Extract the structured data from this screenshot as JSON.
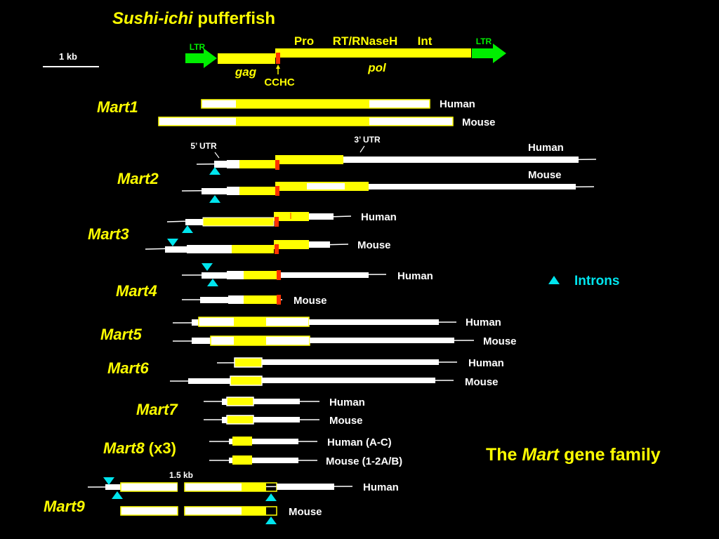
{
  "title": {
    "prefix_italic": "Sushi-ichi",
    "suffix": " pufferfish"
  },
  "scale_bar_label": "1 kb",
  "retrotransposon": {
    "ltr_left": "LTR",
    "ltr_right": "LTR",
    "gag": "gag",
    "pol": "pol",
    "cchc": "CCHC",
    "pro": "Pro",
    "rt": "RT/RNaseH",
    "int": "Int"
  },
  "genes": [
    {
      "name": "Mart1",
      "labels": [
        "Human",
        "Mouse"
      ]
    },
    {
      "name": "Mart2",
      "labels": [
        "Human",
        "Mouse"
      ],
      "utr5": "5’ UTR",
      "utr3": "3’ UTR"
    },
    {
      "name": "Mart3",
      "labels": [
        "Human",
        "Mouse"
      ]
    },
    {
      "name": "Mart4",
      "labels": [
        "Human",
        "Mouse"
      ]
    },
    {
      "name": "Mart5",
      "labels": [
        "Human",
        "Mouse"
      ]
    },
    {
      "name": "Mart6",
      "labels": [
        "Human",
        "Mouse"
      ]
    },
    {
      "name": "Mart7",
      "labels": [
        "Human",
        "Mouse"
      ]
    },
    {
      "name": "Mart8",
      "suffix": " (x3)",
      "labels": [
        "Human (A-C)",
        "Mouse (1-2A/B)"
      ]
    },
    {
      "name": "Mart9",
      "labels": [
        "Human",
        "Mouse"
      ],
      "gap_label": "1.5 kb"
    }
  ],
  "legend": {
    "introns": "Introns"
  },
  "caption": {
    "pre": "The ",
    "italic": "Mart",
    "post": " gene family"
  },
  "colors": {
    "background": "#000000",
    "orf": "#FFFF00",
    "utr": "#FFFFFF",
    "cchc_motif": "#FF3300",
    "ltr": "#00EE00",
    "intron_marker": "#00E5EE",
    "label_yellow": "#FFFF00",
    "label_white": "#FFFFFF"
  }
}
